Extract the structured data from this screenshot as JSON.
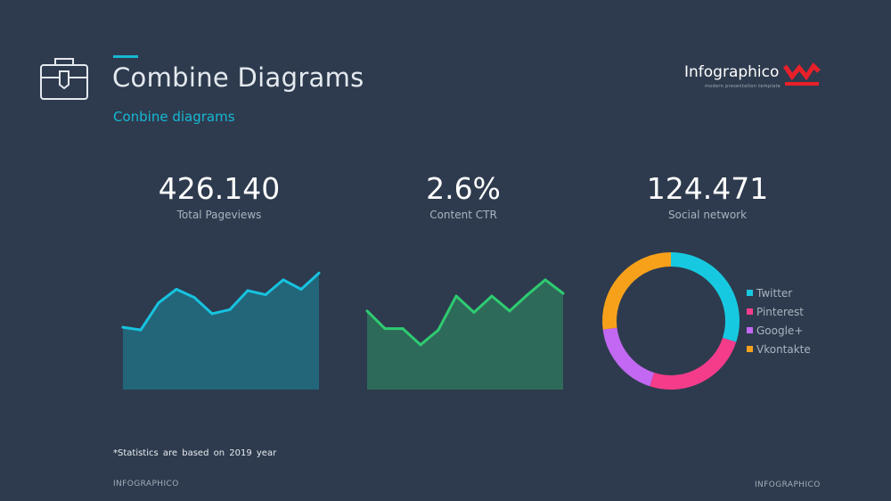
{
  "header": {
    "title": "Combine Diagrams",
    "subtitle": "Conbine diagrams",
    "accent": "#17b8d4"
  },
  "brand": {
    "name": "Infographico",
    "tagline": "modern presentation template",
    "mark_color": "#e8202a"
  },
  "stats": [
    {
      "value": "426.140",
      "label": "Total Pageviews"
    },
    {
      "value": "2.6%",
      "label": "Content CTR"
    },
    {
      "value": "124.471",
      "label": "Social network"
    }
  ],
  "footnote": "*Statistics are based on 2019 year",
  "footer": {
    "left": "INFOGRAPHICO",
    "right": "INFOGRAPHICO"
  },
  "chart_data": [
    {
      "type": "area",
      "x": [
        1,
        2,
        3,
        4,
        5,
        6,
        7,
        8,
        9,
        10,
        11,
        12
      ],
      "values": [
        46,
        44,
        64,
        74,
        68,
        56,
        59,
        73,
        70,
        81,
        74,
        86
      ],
      "ylim": [
        0,
        100
      ],
      "line_color": "#17c3e0",
      "fill_color": "#23667a",
      "grid": false
    },
    {
      "type": "area",
      "x": [
        1,
        2,
        3,
        4,
        5,
        6,
        7,
        8,
        9,
        10,
        11,
        12
      ],
      "values": [
        58,
        45,
        45,
        33,
        44,
        69,
        57,
        69,
        58,
        70,
        81,
        71
      ],
      "ylim": [
        0,
        100
      ],
      "line_color": "#2ecc71",
      "fill_color": "#2e6a5a",
      "grid": false
    },
    {
      "type": "pie",
      "categories": [
        "Twitter",
        "Pinterest",
        "Google+",
        "Vkontakte"
      ],
      "values": [
        30,
        25,
        18,
        27
      ],
      "colors": [
        "#17c9e0",
        "#f43c8a",
        "#c268f2",
        "#f7a11b"
      ]
    }
  ]
}
